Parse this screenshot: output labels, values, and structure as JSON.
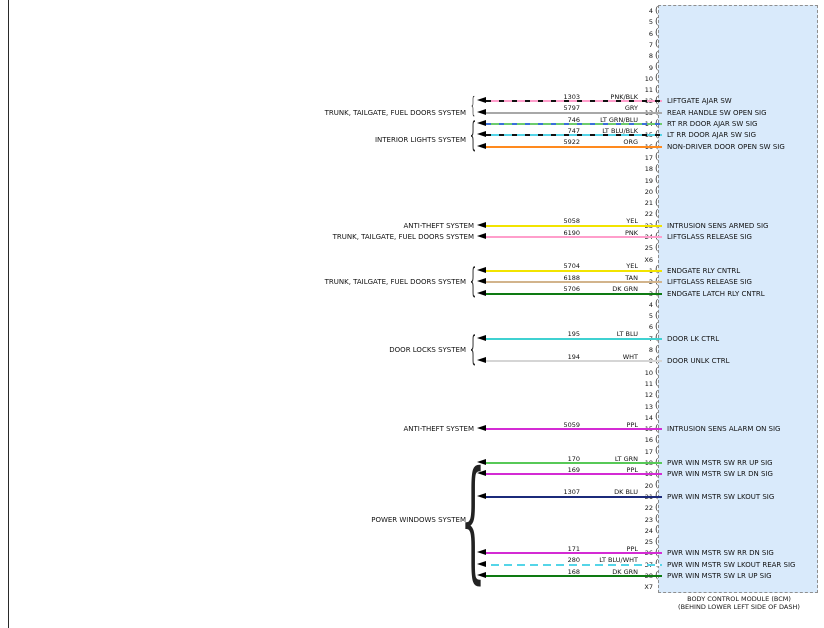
{
  "module": {
    "name_line1": "BODY CONTROL MODULE (BCM)",
    "name_line2": "(BEHIND LOWER LEFT SIDE OF DASH)",
    "box_color": "#d9eafb",
    "box_border": "#8f8f8f"
  },
  "wire_palette": {
    "PNK/BLK": {
      "base": "#ff9ecb",
      "stripe": "#111111"
    },
    "GRY": {
      "base": "#a8a8a8"
    },
    "LT GRN/BLU": {
      "base": "#6dcc6d",
      "stripe": "#3a6fd8"
    },
    "LT BLU/BLK": {
      "base": "#55d5e8",
      "stripe": "#111111"
    },
    "ORG": {
      "base": "#ff8a1e"
    },
    "YEL": {
      "base": "#f2e400"
    },
    "PNK": {
      "base": "#ff9ecb"
    },
    "TAN": {
      "base": "#d2b48c"
    },
    "DK GRN": {
      "base": "#0e7a12"
    },
    "LT BLU": {
      "base": "#3fd1d1"
    },
    "WHT": {
      "base": "#d5d5d5"
    },
    "PPL": {
      "base": "#d42bd4"
    },
    "LT GRN": {
      "base": "#57c957"
    },
    "DK BLU": {
      "base": "#1b2a7a"
    },
    "LT BLU/WHT": {
      "base": "#55d5e8",
      "stripe": "#ffffff"
    }
  },
  "connectors": [
    {
      "id": "X6",
      "first_pin": 4,
      "last_pin": 25,
      "wires": [
        {
          "pin": 12,
          "circuit": "1303",
          "color": "PNK/BLK",
          "signal": "LIFTGATE AJAR SW"
        },
        {
          "pin": 13,
          "circuit": "5797",
          "color": "GRY",
          "signal": "REAR HANDLE SW OPEN SIG"
        },
        {
          "pin": 14,
          "circuit": "746",
          "color": "LT GRN/BLU",
          "signal": "RT RR DOOR AJAR SW SIG"
        },
        {
          "pin": 15,
          "circuit": "747",
          "color": "LT BLU/BLK",
          "signal": "LT RR DOOR AJAR SW SIG"
        },
        {
          "pin": 16,
          "circuit": "5922",
          "color": "ORG",
          "signal": "NON-DRIVER DOOR OPEN SW SIG"
        },
        {
          "pin": 23,
          "circuit": "5058",
          "color": "YEL",
          "signal": "INTRUSION SENS ARMED SIG"
        },
        {
          "pin": 24,
          "circuit": "6190",
          "color": "PNK",
          "signal": "LIFTGLASS RELEASE SIG"
        }
      ],
      "systems": [
        {
          "label": "TRUNK, TAILGATE, FUEL DOORS SYSTEM",
          "from": 12,
          "to": 13,
          "label_at": 13
        },
        {
          "label": "INTERIOR LIGHTS SYSTEM",
          "from": 14,
          "to": 16,
          "label_at": 15.4
        },
        {
          "label": "ANTI-THEFT SYSTEM",
          "from": 23,
          "to": 23,
          "label_at": 23
        },
        {
          "label": "TRUNK, TAILGATE, FUEL DOORS SYSTEM",
          "from": 24,
          "to": 24,
          "label_at": 24
        }
      ]
    },
    {
      "id": "X7",
      "first_pin": 1,
      "last_pin": 28,
      "wires": [
        {
          "pin": 1,
          "circuit": "5704",
          "color": "YEL",
          "signal": "ENDGATE RLY CNTRL"
        },
        {
          "pin": 2,
          "circuit": "6188",
          "color": "TAN",
          "signal": "LIFTGLASS RELEASE SIG"
        },
        {
          "pin": 3,
          "circuit": "5706",
          "color": "DK GRN",
          "signal": "ENDGATE LATCH RLY CNTRL"
        },
        {
          "pin": 7,
          "circuit": "195",
          "color": "LT BLU",
          "signal": "DOOR LK CTRL"
        },
        {
          "pin": 9,
          "circuit": "194",
          "color": "WHT",
          "signal": "DOOR UNLK CTRL"
        },
        {
          "pin": 15,
          "circuit": "5059",
          "color": "PPL",
          "signal": "INTRUSION SENS ALARM ON SIG"
        },
        {
          "pin": 18,
          "circuit": "170",
          "color": "LT GRN",
          "signal": "PWR WIN MSTR SW RR UP SIG"
        },
        {
          "pin": 19,
          "circuit": "169",
          "color": "PPL",
          "signal": "PWR WIN MSTR SW LR DN SIG"
        },
        {
          "pin": 21,
          "circuit": "1307",
          "color": "DK BLU",
          "signal": "PWR WIN MSTR SW LKOUT SIG"
        },
        {
          "pin": 26,
          "circuit": "171",
          "color": "PPL",
          "signal": "PWR WIN MSTR SW RR DN SIG"
        },
        {
          "pin": 27,
          "circuit": "280",
          "color": "LT BLU/WHT",
          "signal": "PWR WIN MSTR SW LKOUT REAR SIG"
        },
        {
          "pin": 28,
          "circuit": "168",
          "color": "DK GRN",
          "signal": "PWR WIN MSTR SW LR UP SIG"
        }
      ],
      "systems": [
        {
          "label": "TRUNK, TAILGATE, FUEL DOORS SYSTEM",
          "from": 1,
          "to": 3,
          "label_at": 2
        },
        {
          "label": "DOOR LOCKS SYSTEM",
          "from": 7,
          "to": 9,
          "label_at": 8
        },
        {
          "label": "ANTI-THEFT SYSTEM",
          "from": 15,
          "to": 15,
          "label_at": 15
        },
        {
          "label": "POWER WINDOWS SYSTEM",
          "from": 18,
          "to": 28,
          "label_at": 23
        }
      ]
    }
  ]
}
